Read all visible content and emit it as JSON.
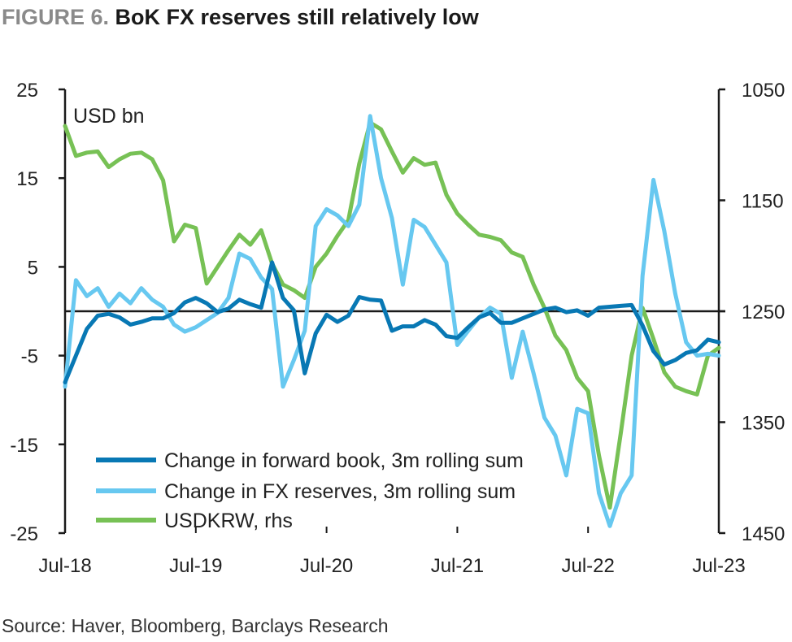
{
  "figure_label": "FIGURE 6.",
  "title": "BoK FX reserves still relatively low",
  "source": "Source: Haver, Bloomberg, Barclays Research",
  "colors": {
    "forward_book": "#0878b4",
    "fx_reserves": "#67c8f0",
    "usdkrw": "#77c155",
    "axis": "#1a1a1a"
  },
  "chart_data": {
    "type": "line",
    "ylabel": "USD bn",
    "ylim": [
      -25,
      25
    ],
    "y_ticks": [
      "25",
      "15",
      "5",
      "-5",
      "-15",
      "-25"
    ],
    "y2lim": [
      1050,
      1450
    ],
    "y2_inverted": true,
    "y2_ticks": [
      "1050",
      "1150",
      "1250",
      "1350",
      "1450"
    ],
    "x_ticks": [
      "Jul-18",
      "Jul-19",
      "Jul-20",
      "Jul-21",
      "Jul-22",
      "Jul-23"
    ],
    "x": [
      "2018-07",
      "2018-08",
      "2018-09",
      "2018-10",
      "2018-11",
      "2018-12",
      "2019-01",
      "2019-02",
      "2019-03",
      "2019-04",
      "2019-05",
      "2019-06",
      "2019-07",
      "2019-08",
      "2019-09",
      "2019-10",
      "2019-11",
      "2019-12",
      "2020-01",
      "2020-02",
      "2020-03",
      "2020-04",
      "2020-05",
      "2020-06",
      "2020-07",
      "2020-08",
      "2020-09",
      "2020-10",
      "2020-11",
      "2020-12",
      "2021-01",
      "2021-02",
      "2021-03",
      "2021-04",
      "2021-05",
      "2021-06",
      "2021-07",
      "2021-08",
      "2021-09",
      "2021-10",
      "2021-11",
      "2021-12",
      "2022-01",
      "2022-02",
      "2022-03",
      "2022-04",
      "2022-05",
      "2022-06",
      "2022-07",
      "2022-08",
      "2022-09",
      "2022-10",
      "2022-11",
      "2022-12",
      "2023-01",
      "2023-02",
      "2023-03",
      "2023-04",
      "2023-05",
      "2023-06",
      "2023-07"
    ],
    "legend_position": "bottom-left",
    "grid": false,
    "series": [
      {
        "name": "Change in forward book, 3m rolling sum",
        "axis": "left",
        "values": [
          -8,
          -5,
          -2,
          -0.5,
          -0.3,
          -0.7,
          -1.5,
          -1.2,
          -0.8,
          -0.8,
          -0.2,
          1,
          1.5,
          0.9,
          -0.1,
          0.3,
          1.3,
          0.8,
          0.4,
          5.5,
          1.5,
          0.1,
          -7,
          -2.5,
          -0.4,
          -1.2,
          -0.5,
          1.6,
          1.3,
          1.2,
          -2.2,
          -1.7,
          -1.7,
          -1,
          -1.5,
          -2.8,
          -3,
          -1.8,
          -0.7,
          -0.2,
          -1.3,
          -1.3,
          -0.8,
          -0.3,
          0.2,
          0.4,
          -0.1,
          0.1,
          -0.5,
          0.4,
          0.5,
          0.6,
          0.7,
          -1.6,
          -4.5,
          -6,
          -5.5,
          -4.7,
          -4.4,
          -3.2,
          -3.5
        ]
      },
      {
        "name": "Change in FX reserves, 3m rolling sum",
        "axis": "left",
        "values": [
          -8.5,
          3.5,
          1.7,
          2.6,
          0.5,
          2,
          0.9,
          2.6,
          1.3,
          0.5,
          -1.5,
          -2.3,
          -1.8,
          -1,
          -0.2,
          1.5,
          6.5,
          5.9,
          3.8,
          2.5,
          -8.5,
          -5.5,
          -2.2,
          9.6,
          11.5,
          10.8,
          9.6,
          12,
          22,
          15,
          10.5,
          3,
          10.3,
          9.5,
          7.5,
          5.5,
          -3.8,
          -2.2,
          -0.7,
          0.4,
          -0.3,
          -7.5,
          -2.3,
          -7,
          -12,
          -14,
          -18.5,
          -11,
          -11.5,
          -20.5,
          -24.2,
          -20.5,
          -18.5,
          4,
          14.8,
          9,
          2,
          -3.5,
          -5,
          -4.8,
          -5
        ]
      },
      {
        "name": "USDKRW, rhs",
        "axis": "right",
        "values": [
          1083,
          1110,
          1107,
          1106,
          1120,
          1113,
          1108,
          1107,
          1113,
          1132,
          1187,
          1172,
          1175,
          1225,
          1210,
          1195,
          1181,
          1190,
          1177,
          1207,
          1226,
          1231,
          1238,
          1210,
          1198,
          1182,
          1168,
          1117,
          1080,
          1086,
          1106,
          1125,
          1112,
          1118,
          1116,
          1145,
          1162,
          1172,
          1181,
          1183,
          1186,
          1197,
          1201,
          1226,
          1247,
          1272,
          1285,
          1310,
          1322,
          1380,
          1427,
          1360,
          1290,
          1247,
          1275,
          1305,
          1318,
          1322,
          1325,
          1290,
          1283
        ]
      }
    ]
  }
}
